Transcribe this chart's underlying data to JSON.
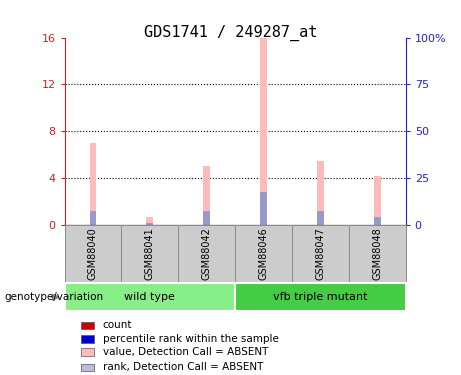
{
  "title": "GDS1741 / 249287_at",
  "samples": [
    "GSM88040",
    "GSM88041",
    "GSM88042",
    "GSM88046",
    "GSM88047",
    "GSM88048"
  ],
  "pink_values": [
    7.0,
    0.7,
    5.0,
    16.0,
    5.5,
    4.2
  ],
  "blue_values": [
    1.2,
    0.2,
    1.2,
    2.8,
    1.2,
    0.7
  ],
  "ylim_left": [
    0,
    16
  ],
  "ylim_right": [
    0,
    100
  ],
  "yticks_left": [
    0,
    4,
    8,
    12,
    16
  ],
  "ytick_labels_left": [
    "0",
    "4",
    "8",
    "12",
    "16"
  ],
  "yticks_right": [
    0,
    25,
    50,
    75,
    100
  ],
  "ytick_labels_right": [
    "0",
    "25",
    "50",
    "75",
    "100%"
  ],
  "groups": [
    {
      "label": "wild type",
      "indices": [
        0,
        1,
        2
      ],
      "color": "#88ee88"
    },
    {
      "label": "vfb triple mutant",
      "indices": [
        3,
        4,
        5
      ],
      "color": "#44cc44"
    }
  ],
  "group_label": "genotype/variation",
  "bar_width": 0.12,
  "pink_color": "#ffbbbb",
  "blue_color": "#9999cc",
  "legend_items": [
    {
      "color": "#cc0000",
      "label": "count"
    },
    {
      "color": "#0000cc",
      "label": "percentile rank within the sample"
    },
    {
      "color": "#ffbbbb",
      "label": "value, Detection Call = ABSENT"
    },
    {
      "color": "#bbbbdd",
      "label": "rank, Detection Call = ABSENT"
    }
  ],
  "bg_color": "#ffffff",
  "tick_label_fontsize": 8,
  "title_fontsize": 11,
  "grid_color": "#000000",
  "left_axis_color": "#cc2222",
  "right_axis_color": "#2222cc",
  "sample_box_color": "#cccccc",
  "sample_box_border": "#888888"
}
